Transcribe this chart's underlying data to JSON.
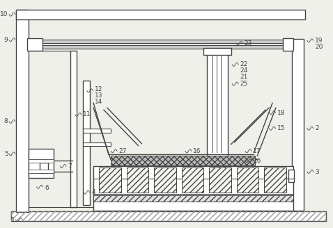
{
  "bg_color": "#f0f0eb",
  "line_color": "#444444",
  "fig_w": 4.78,
  "fig_h": 3.28,
  "dpi": 100
}
